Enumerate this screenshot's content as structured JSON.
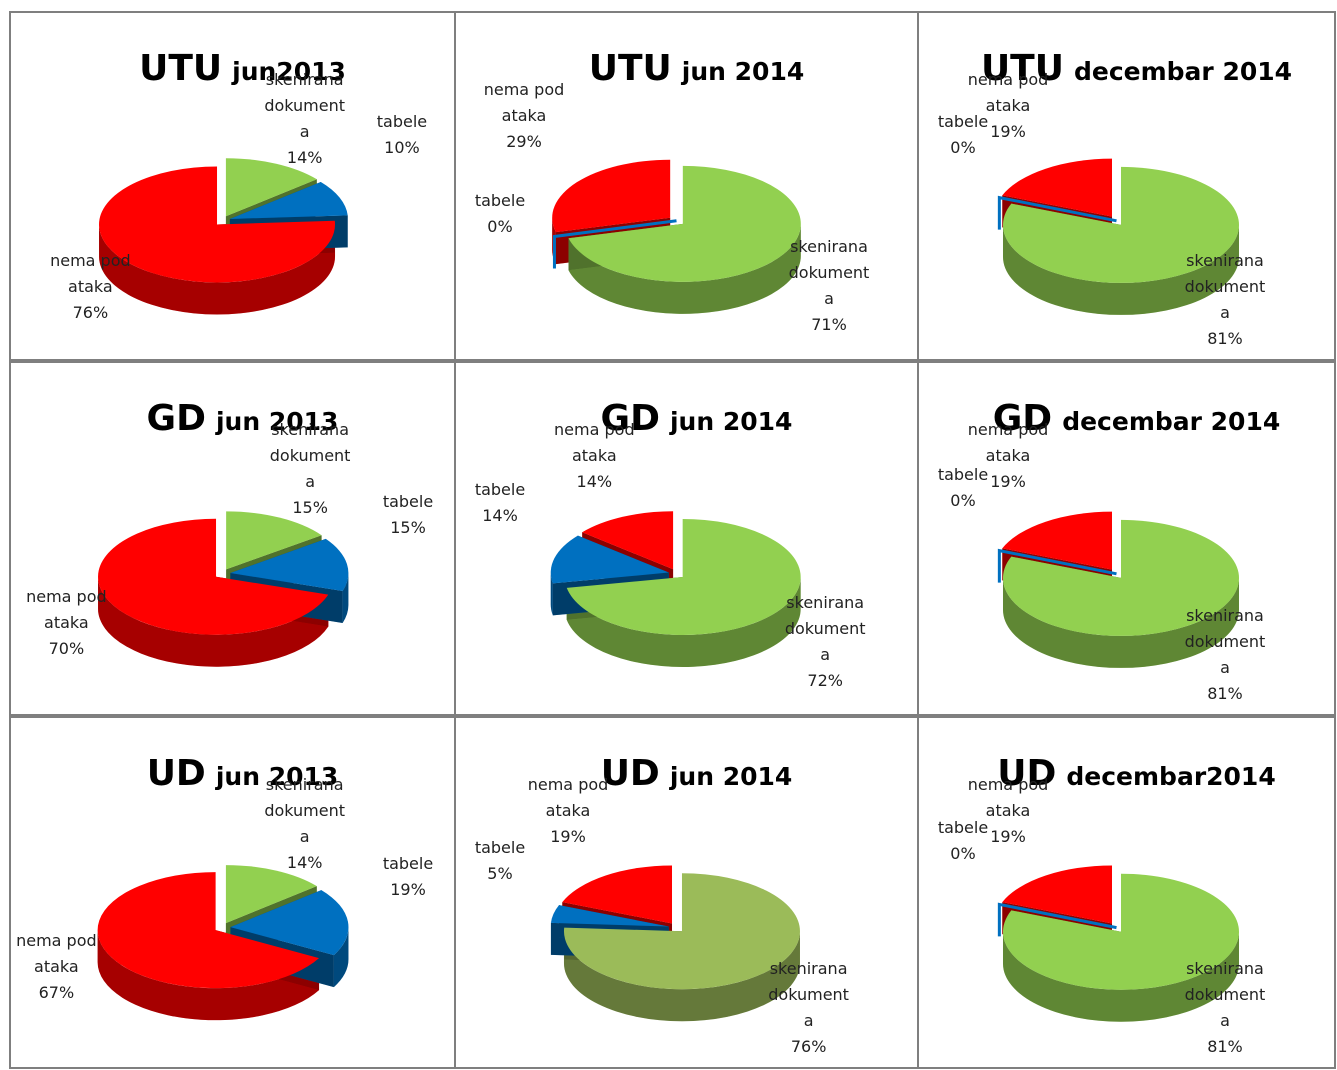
{
  "chart_data": [
    {
      "type": "pie",
      "title": "UTU",
      "subtitle": "jun2013",
      "categories": [
        "nema podataka",
        "skenirana dokumenta",
        "tabele"
      ],
      "values": [
        76,
        14,
        10
      ],
      "value_labels": [
        "76%",
        "14%",
        "10%"
      ],
      "colors": [
        "#ff0000",
        "#92d050",
        "#0070c0"
      ]
    },
    {
      "type": "pie",
      "title": "UTU",
      "subtitle": "jun 2014",
      "categories": [
        "nema podataka",
        "skenirana dokumenta",
        "tabele"
      ],
      "values": [
        29,
        71,
        0
      ],
      "value_labels": [
        "29%",
        "71%",
        "0%"
      ],
      "colors": [
        "#ff0000",
        "#92d050",
        "#0070c0"
      ]
    },
    {
      "type": "pie",
      "title": "UTU",
      "subtitle": "decembar 2014",
      "categories": [
        "nema podataka",
        "skenirana dokumenta",
        "tabele"
      ],
      "values": [
        19,
        81,
        0
      ],
      "value_labels": [
        "19%",
        "81%",
        "0%"
      ],
      "colors": [
        "#ff0000",
        "#92d050",
        "#0070c0"
      ]
    },
    {
      "type": "pie",
      "title": "GD",
      "subtitle": "jun 2013",
      "categories": [
        "nema podataka",
        "skenirana dokumenta",
        "tabele"
      ],
      "values": [
        70,
        15,
        15
      ],
      "value_labels": [
        "70%",
        "15%",
        "15%"
      ],
      "colors": [
        "#ff0000",
        "#92d050",
        "#0070c0"
      ]
    },
    {
      "type": "pie",
      "title": "GD",
      "subtitle": "jun 2014",
      "categories": [
        "nema podataka",
        "skenirana dokumenta",
        "tabele"
      ],
      "values": [
        14,
        72,
        14
      ],
      "value_labels": [
        "14%",
        "72%",
        "14%"
      ],
      "colors": [
        "#ff0000",
        "#92d050",
        "#0070c0"
      ]
    },
    {
      "type": "pie",
      "title": "GD",
      "subtitle": "decembar 2014",
      "categories": [
        "nema podataka",
        "skenirana dokumenta",
        "tabele"
      ],
      "values": [
        19,
        81,
        0
      ],
      "value_labels": [
        "19%",
        "81%",
        "0%"
      ],
      "colors": [
        "#ff0000",
        "#92d050",
        "#0070c0"
      ]
    },
    {
      "type": "pie",
      "title": "UD",
      "subtitle": "jun 2013",
      "categories": [
        "nema podataka",
        "skenirana dokumenta",
        "tabele"
      ],
      "values": [
        67,
        14,
        19
      ],
      "value_labels": [
        "67%",
        "14%",
        "19%"
      ],
      "colors": [
        "#ff0000",
        "#92d050",
        "#0070c0"
      ]
    },
    {
      "type": "pie",
      "title": "UD",
      "subtitle": "jun 2014",
      "categories": [
        "nema podataka",
        "skenirana dokumenta",
        "tabele"
      ],
      "values": [
        19,
        76,
        5
      ],
      "value_labels": [
        "19%",
        "76%",
        "5%"
      ],
      "colors": [
        "#ff0000",
        "#9bbb59",
        "#0070c0"
      ]
    },
    {
      "type": "pie",
      "title": "UD",
      "subtitle": "decembar2014",
      "categories": [
        "nema podataka",
        "skenirana dokumenta",
        "tabele"
      ],
      "values": [
        19,
        81,
        0
      ],
      "value_labels": [
        "19%",
        "81%",
        "0%"
      ],
      "colors": [
        "#ff0000",
        "#92d050",
        "#0070c0"
      ]
    }
  ]
}
